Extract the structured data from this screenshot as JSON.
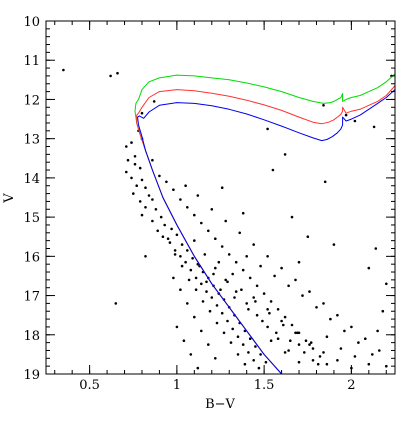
{
  "chart_data": {
    "type": "scatter",
    "title": "",
    "xlabel": "B−V",
    "ylabel": "V",
    "xlim": [
      0.25,
      2.25
    ],
    "ylim": [
      19,
      10
    ],
    "y_inverted": true,
    "grid": false,
    "legend": "none",
    "x_ticks": [
      0.5,
      1,
      1.5,
      2
    ],
    "x_tick_labels": [
      "0.5",
      "1",
      "1.5",
      "2"
    ],
    "y_ticks": [
      10,
      11,
      12,
      13,
      14,
      15,
      16,
      17,
      18,
      19
    ],
    "y_tick_labels": [
      "10",
      "11",
      "12",
      "13",
      "14",
      "15",
      "16",
      "17",
      "18",
      "19"
    ],
    "stars": {
      "color": "#000000",
      "points": [
        [
          0.35,
          11.25
        ],
        [
          0.62,
          11.4
        ],
        [
          0.66,
          11.33
        ],
        [
          0.8,
          12.35
        ],
        [
          0.78,
          12.8
        ],
        [
          0.8,
          13.0
        ],
        [
          0.71,
          13.2
        ],
        [
          0.74,
          13.1
        ],
        [
          0.76,
          13.45
        ],
        [
          0.72,
          13.55
        ],
        [
          0.76,
          13.65
        ],
        [
          0.79,
          13.75
        ],
        [
          0.71,
          13.85
        ],
        [
          0.74,
          14.0
        ],
        [
          0.8,
          14.05
        ],
        [
          0.77,
          14.2
        ],
        [
          0.82,
          14.25
        ],
        [
          0.75,
          14.4
        ],
        [
          0.84,
          14.45
        ],
        [
          0.79,
          14.6
        ],
        [
          0.86,
          14.55
        ],
        [
          0.82,
          14.75
        ],
        [
          0.88,
          14.8
        ],
        [
          0.8,
          14.95
        ],
        [
          0.91,
          15.0
        ],
        [
          0.86,
          15.1
        ],
        [
          0.93,
          15.2
        ],
        [
          0.89,
          15.35
        ],
        [
          0.97,
          15.3
        ],
        [
          0.92,
          15.5
        ],
        [
          1.0,
          15.45
        ],
        [
          0.96,
          15.65
        ],
        [
          1.03,
          15.7
        ],
        [
          0.99,
          15.85
        ],
        [
          1.06,
          15.85
        ],
        [
          1.02,
          16.0
        ],
        [
          1.09,
          16.05
        ],
        [
          1.05,
          16.15
        ],
        [
          1.12,
          16.2
        ],
        [
          1.08,
          16.35
        ],
        [
          1.15,
          16.4
        ],
        [
          1.11,
          16.55
        ],
        [
          1.18,
          16.55
        ],
        [
          1.14,
          16.7
        ],
        [
          1.21,
          16.75
        ],
        [
          1.17,
          16.9
        ],
        [
          1.24,
          16.95
        ],
        [
          1.2,
          17.05
        ],
        [
          1.27,
          17.1
        ],
        [
          1.23,
          17.25
        ],
        [
          1.3,
          17.3
        ],
        [
          1.26,
          17.45
        ],
        [
          1.33,
          17.5
        ],
        [
          1.29,
          17.65
        ],
        [
          1.36,
          17.7
        ],
        [
          1.32,
          17.85
        ],
        [
          1.39,
          17.9
        ],
        [
          1.35,
          18.05
        ],
        [
          1.42,
          18.1
        ],
        [
          1.38,
          18.25
        ],
        [
          1.45,
          18.3
        ],
        [
          1.41,
          18.45
        ],
        [
          1.48,
          18.5
        ],
        [
          1.44,
          18.65
        ],
        [
          1.51,
          18.7
        ],
        [
          1.47,
          18.85
        ],
        [
          0.86,
          13.55
        ],
        [
          0.9,
          13.95
        ],
        [
          0.94,
          14.1
        ],
        [
          0.98,
          14.3
        ],
        [
          1.02,
          14.55
        ],
        [
          1.06,
          14.75
        ],
        [
          1.1,
          14.95
        ],
        [
          1.14,
          15.15
        ],
        [
          1.18,
          15.35
        ],
        [
          1.22,
          15.55
        ],
        [
          1.26,
          15.75
        ],
        [
          1.3,
          15.95
        ],
        [
          1.34,
          16.15
        ],
        [
          1.38,
          16.35
        ],
        [
          1.42,
          16.55
        ],
        [
          1.46,
          16.75
        ],
        [
          1.5,
          16.95
        ],
        [
          1.54,
          17.15
        ],
        [
          1.58,
          17.35
        ],
        [
          1.62,
          17.55
        ],
        [
          1.66,
          17.75
        ],
        [
          1.7,
          17.95
        ],
        [
          1.74,
          18.15
        ],
        [
          1.78,
          18.35
        ],
        [
          1.82,
          18.55
        ],
        [
          1.86,
          18.75
        ],
        [
          0.95,
          15.55
        ],
        [
          0.99,
          15.95
        ],
        [
          1.03,
          16.25
        ],
        [
          1.07,
          16.6
        ],
        [
          1.11,
          16.85
        ],
        [
          1.15,
          17.15
        ],
        [
          1.19,
          17.4
        ],
        [
          1.23,
          17.7
        ],
        [
          1.27,
          17.95
        ],
        [
          1.31,
          18.2
        ],
        [
          1.35,
          18.5
        ],
        [
          1.39,
          18.75
        ],
        [
          1.1,
          15.6
        ],
        [
          1.16,
          15.95
        ],
        [
          1.22,
          16.3
        ],
        [
          1.28,
          16.6
        ],
        [
          1.34,
          16.9
        ],
        [
          1.4,
          17.2
        ],
        [
          1.46,
          17.5
        ],
        [
          1.52,
          17.8
        ],
        [
          1.58,
          18.1
        ],
        [
          1.64,
          18.4
        ],
        [
          1.7,
          18.7
        ],
        [
          1.05,
          14.2
        ],
        [
          1.12,
          14.45
        ],
        [
          1.2,
          14.8
        ],
        [
          1.28,
          15.1
        ],
        [
          1.36,
          15.4
        ],
        [
          1.44,
          15.7
        ],
        [
          1.52,
          16.0
        ],
        [
          1.6,
          16.3
        ],
        [
          1.68,
          16.6
        ],
        [
          1.76,
          16.9
        ],
        [
          1.84,
          17.2
        ],
        [
          1.92,
          17.5
        ],
        [
          2.0,
          17.8
        ],
        [
          2.08,
          18.1
        ],
        [
          2.16,
          18.4
        ],
        [
          0.98,
          16.55
        ],
        [
          1.02,
          16.85
        ],
        [
          1.06,
          17.2
        ],
        [
          1.1,
          17.55
        ],
        [
          1.14,
          17.9
        ],
        [
          1.18,
          18.25
        ],
        [
          1.22,
          18.6
        ],
        [
          1.0,
          17.8
        ],
        [
          1.04,
          18.15
        ],
        [
          1.08,
          18.5
        ],
        [
          1.12,
          18.85
        ],
        [
          1.24,
          16.15
        ],
        [
          1.32,
          16.45
        ],
        [
          1.4,
          16.0
        ],
        [
          1.48,
          16.25
        ],
        [
          1.56,
          16.5
        ],
        [
          1.64,
          16.75
        ],
        [
          1.72,
          17.0
        ],
        [
          1.8,
          17.3
        ],
        [
          1.88,
          17.6
        ],
        [
          1.96,
          17.9
        ],
        [
          2.04,
          18.2
        ],
        [
          2.12,
          18.5
        ],
        [
          2.2,
          18.8
        ],
        [
          1.44,
          17.05
        ],
        [
          1.52,
          17.35
        ],
        [
          1.6,
          17.65
        ],
        [
          1.68,
          17.95
        ],
        [
          1.76,
          18.25
        ],
        [
          1.84,
          18.45
        ],
        [
          1.92,
          18.65
        ],
        [
          2.0,
          18.85
        ],
        [
          1.54,
          18.15
        ],
        [
          1.62,
          18.45
        ],
        [
          1.7,
          18.25
        ],
        [
          1.78,
          18.65
        ],
        [
          1.86,
          18.05
        ],
        [
          1.94,
          18.35
        ],
        [
          2.02,
          18.55
        ],
        [
          2.1,
          18.75
        ],
        [
          1.13,
          16.25
        ],
        [
          1.17,
          16.65
        ],
        [
          1.21,
          16.45
        ],
        [
          1.25,
          16.85
        ],
        [
          1.29,
          16.65
        ],
        [
          1.33,
          17.05
        ],
        [
          1.37,
          16.85
        ],
        [
          1.41,
          17.35
        ],
        [
          1.45,
          17.15
        ],
        [
          1.49,
          17.65
        ],
        [
          1.53,
          17.45
        ],
        [
          1.57,
          17.95
        ],
        [
          1.61,
          17.75
        ],
        [
          1.65,
          18.15
        ],
        [
          1.69,
          17.95
        ],
        [
          1.73,
          18.45
        ],
        [
          1.77,
          18.2
        ],
        [
          1.81,
          18.75
        ],
        [
          0.65,
          17.2
        ],
        [
          0.82,
          16.0
        ],
        [
          1.26,
          14.25
        ],
        [
          1.38,
          14.9
        ],
        [
          1.55,
          13.8
        ],
        [
          1.62,
          13.4
        ],
        [
          1.84,
          12.15
        ],
        [
          1.85,
          14.1
        ],
        [
          1.97,
          12.4
        ],
        [
          2.02,
          12.55
        ],
        [
          1.66,
          15.0
        ],
        [
          1.75,
          15.5
        ],
        [
          1.7,
          16.15
        ],
        [
          2.14,
          15.8
        ],
        [
          2.1,
          16.3
        ],
        [
          1.9,
          15.7
        ],
        [
          2.2,
          16.7
        ],
        [
          2.18,
          17.4
        ],
        [
          2.15,
          17.9
        ],
        [
          1.52,
          12.75
        ],
        [
          0.87,
          12.05
        ],
        [
          2.13,
          12.7
        ],
        [
          2.23,
          11.4
        ]
      ]
    },
    "isochrones": [
      {
        "color": "#00dd00",
        "x": [
          1.6,
          1.5,
          1.4,
          1.3,
          1.2,
          1.1,
          1.0,
          0.92,
          0.86,
          0.82,
          0.79,
          0.77,
          0.76,
          0.765,
          0.78,
          0.8,
          0.84,
          0.9,
          1.0,
          1.1,
          1.2,
          1.3,
          1.4,
          1.5,
          1.6,
          1.7,
          1.78,
          1.84,
          1.88,
          1.9,
          1.92,
          1.94,
          1.95,
          1.95,
          1.97,
          2.0,
          2.05,
          2.1,
          2.15,
          2.2,
          2.25
        ],
        "y": [
          19.0,
          18.5,
          17.9,
          17.3,
          16.7,
          16.0,
          15.2,
          14.5,
          13.8,
          13.3,
          12.9,
          12.6,
          12.3,
          12.1,
          12.0,
          11.75,
          11.55,
          11.45,
          11.38,
          11.4,
          11.45,
          11.5,
          11.58,
          11.68,
          11.8,
          11.95,
          12.05,
          12.1,
          12.08,
          12.05,
          12.0,
          11.95,
          11.85,
          12.05,
          12.0,
          11.95,
          11.9,
          11.8,
          11.7,
          11.55,
          11.35
        ]
      },
      {
        "color": "#ff3333",
        "x": [
          1.6,
          1.5,
          1.4,
          1.3,
          1.2,
          1.1,
          1.0,
          0.92,
          0.86,
          0.82,
          0.79,
          0.77,
          0.77,
          0.78,
          0.8,
          0.84,
          0.9,
          1.0,
          1.1,
          1.2,
          1.3,
          1.4,
          1.5,
          1.6,
          1.7,
          1.78,
          1.83,
          1.87,
          1.9,
          1.92,
          1.94,
          1.95,
          1.95,
          1.97,
          2.0,
          2.05,
          2.1,
          2.15,
          2.2,
          2.25
        ],
        "y": [
          19.0,
          18.5,
          17.9,
          17.3,
          16.7,
          16.0,
          15.2,
          14.5,
          13.8,
          13.3,
          12.9,
          12.6,
          12.4,
          12.35,
          12.2,
          11.95,
          11.8,
          11.75,
          11.78,
          11.84,
          11.92,
          12.02,
          12.14,
          12.28,
          12.45,
          12.58,
          12.62,
          12.58,
          12.52,
          12.45,
          12.38,
          12.3,
          12.2,
          12.35,
          12.3,
          12.25,
          12.15,
          12.05,
          11.9,
          11.65
        ]
      },
      {
        "color": "#0000ee",
        "x": [
          1.6,
          1.5,
          1.4,
          1.3,
          1.2,
          1.1,
          1.0,
          0.92,
          0.86,
          0.82,
          0.8,
          0.78,
          0.775,
          0.785,
          0.81,
          0.84,
          0.9,
          1.0,
          1.1,
          1.2,
          1.3,
          1.4,
          1.5,
          1.6,
          1.7,
          1.78,
          1.83,
          1.86,
          1.89,
          1.92,
          1.94,
          1.95,
          1.95,
          1.97,
          2.0,
          2.05,
          2.1,
          2.15,
          2.2,
          2.25
        ],
        "y": [
          19.0,
          18.5,
          17.9,
          17.3,
          16.7,
          16.0,
          15.2,
          14.5,
          13.8,
          13.3,
          12.95,
          12.65,
          12.45,
          12.42,
          12.48,
          12.32,
          12.15,
          12.08,
          12.1,
          12.16,
          12.25,
          12.37,
          12.52,
          12.68,
          12.85,
          12.98,
          13.05,
          13.02,
          12.95,
          12.85,
          12.75,
          12.65,
          12.45,
          12.55,
          12.5,
          12.4,
          12.25,
          12.1,
          11.95,
          11.75
        ]
      }
    ]
  }
}
